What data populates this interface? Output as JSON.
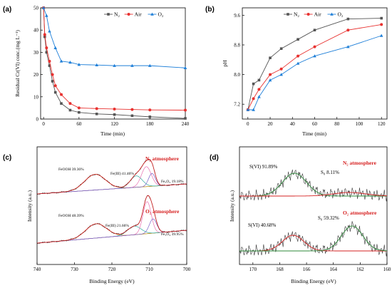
{
  "chart_data": [
    {
      "id": "a",
      "panel_label": "(a)",
      "type": "line",
      "xlabel": "Time (min)",
      "ylabel": "Residual Cr(VI) conc.(mg L⁻¹)",
      "xlim": [
        -5,
        240
      ],
      "ylim": [
        0,
        50
      ],
      "xticks": [
        0,
        60,
        120,
        180,
        240
      ],
      "yticks": [
        0,
        10,
        20,
        30,
        40,
        50
      ],
      "legend_position": "top-right",
      "series": [
        {
          "name": "N₂",
          "color": "#555555",
          "marker": "square",
          "x": [
            0,
            2,
            5,
            10,
            15,
            20,
            30,
            45,
            60,
            90,
            120,
            150,
            180,
            240
          ],
          "y": [
            50,
            37,
            30,
            24,
            17,
            12,
            7,
            4,
            3,
            2.3,
            2,
            1.5,
            1,
            0.3
          ]
        },
        {
          "name": "Air",
          "color": "#e8312f",
          "marker": "circle",
          "x": [
            0,
            2,
            5,
            10,
            15,
            20,
            30,
            45,
            60,
            90,
            120,
            150,
            180,
            240
          ],
          "y": [
            50,
            38,
            32,
            26,
            20,
            15,
            11,
            7,
            5,
            4.7,
            4.5,
            4.3,
            4.1,
            4
          ]
        },
        {
          "name": "O₂",
          "color": "#1e7fd8",
          "marker": "triangle",
          "x": [
            0,
            5,
            10,
            20,
            30,
            45,
            60,
            90,
            120,
            150,
            180,
            240
          ],
          "y": [
            50,
            46.5,
            39.5,
            32,
            26,
            25.5,
            24.5,
            24.3,
            24,
            24,
            24,
            23
          ]
        }
      ]
    },
    {
      "id": "b",
      "panel_label": "(b)",
      "type": "line",
      "xlabel": "Time (min)",
      "ylabel": "pH",
      "xlim": [
        -5,
        125
      ],
      "ylim": [
        6.8,
        9.8
      ],
      "xticks": [
        0,
        20,
        40,
        60,
        80,
        100,
        120
      ],
      "yticks": [
        7.2,
        8.0,
        8.8,
        9.6
      ],
      "legend_position": "top-right",
      "series": [
        {
          "name": "N₂",
          "color": "#555555",
          "marker": "square",
          "x": [
            0,
            5,
            10,
            20,
            30,
            45,
            60,
            90,
            120
          ],
          "y": [
            7.05,
            7.75,
            7.85,
            8.45,
            8.7,
            8.95,
            9.2,
            9.5,
            9.52
          ]
        },
        {
          "name": "Air",
          "color": "#e8312f",
          "marker": "circle",
          "x": [
            0,
            5,
            10,
            20,
            30,
            45,
            60,
            90,
            120
          ],
          "y": [
            7.05,
            7.35,
            7.6,
            8.0,
            8.15,
            8.5,
            8.75,
            9.2,
            9.35
          ]
        },
        {
          "name": "O₂",
          "color": "#1e7fd8",
          "marker": "triangle",
          "x": [
            0,
            5,
            10,
            20,
            30,
            45,
            60,
            90,
            120
          ],
          "y": [
            7.05,
            7.05,
            7.4,
            7.85,
            8.0,
            8.3,
            8.5,
            8.75,
            9.05
          ]
        }
      ]
    },
    {
      "id": "c",
      "panel_label": "(c)",
      "type": "line",
      "xlabel": "Binding Energy (eV)",
      "ylabel": "Intensity (a.u.)",
      "xlim": [
        740,
        700
      ],
      "xticks": [
        740,
        730,
        720,
        710,
        700
      ],
      "annotations": [
        {
          "text": "FeOOH 39.36%",
          "group": "top"
        },
        {
          "text": "Fe(III) 41.46%",
          "group": "top"
        },
        {
          "text": "Fe₃O₄ 19.18%",
          "group": "top"
        },
        {
          "text": "FeOOH 48.39%",
          "group": "bottom"
        },
        {
          "text": "Fe(III) 21.66%",
          "group": "bottom"
        },
        {
          "text": "Fe₃O₄ 39.95%",
          "group": "bottom"
        }
      ],
      "atmospheres": [
        "N₂ atmosphere",
        "O₂ atmosphere"
      ]
    },
    {
      "id": "d",
      "panel_label": "(d)",
      "type": "line",
      "xlabel": "Binding Energy (eV)",
      "ylabel": "Intensity (a.u.)",
      "xlim": [
        171,
        160
      ],
      "xticks": [
        170,
        168,
        166,
        164,
        162,
        160
      ],
      "annotations": [
        {
          "text": "S(VI) 91.89%",
          "group": "top"
        },
        {
          "text": "S₀ 8.11%",
          "group": "top"
        },
        {
          "text": "S(VI) 40.68%",
          "group": "bottom"
        },
        {
          "text": "S₀ 59.32%",
          "group": "bottom"
        }
      ],
      "atmospheres": [
        "N₂ atmosphere",
        "O₂ atmosphere"
      ]
    }
  ]
}
